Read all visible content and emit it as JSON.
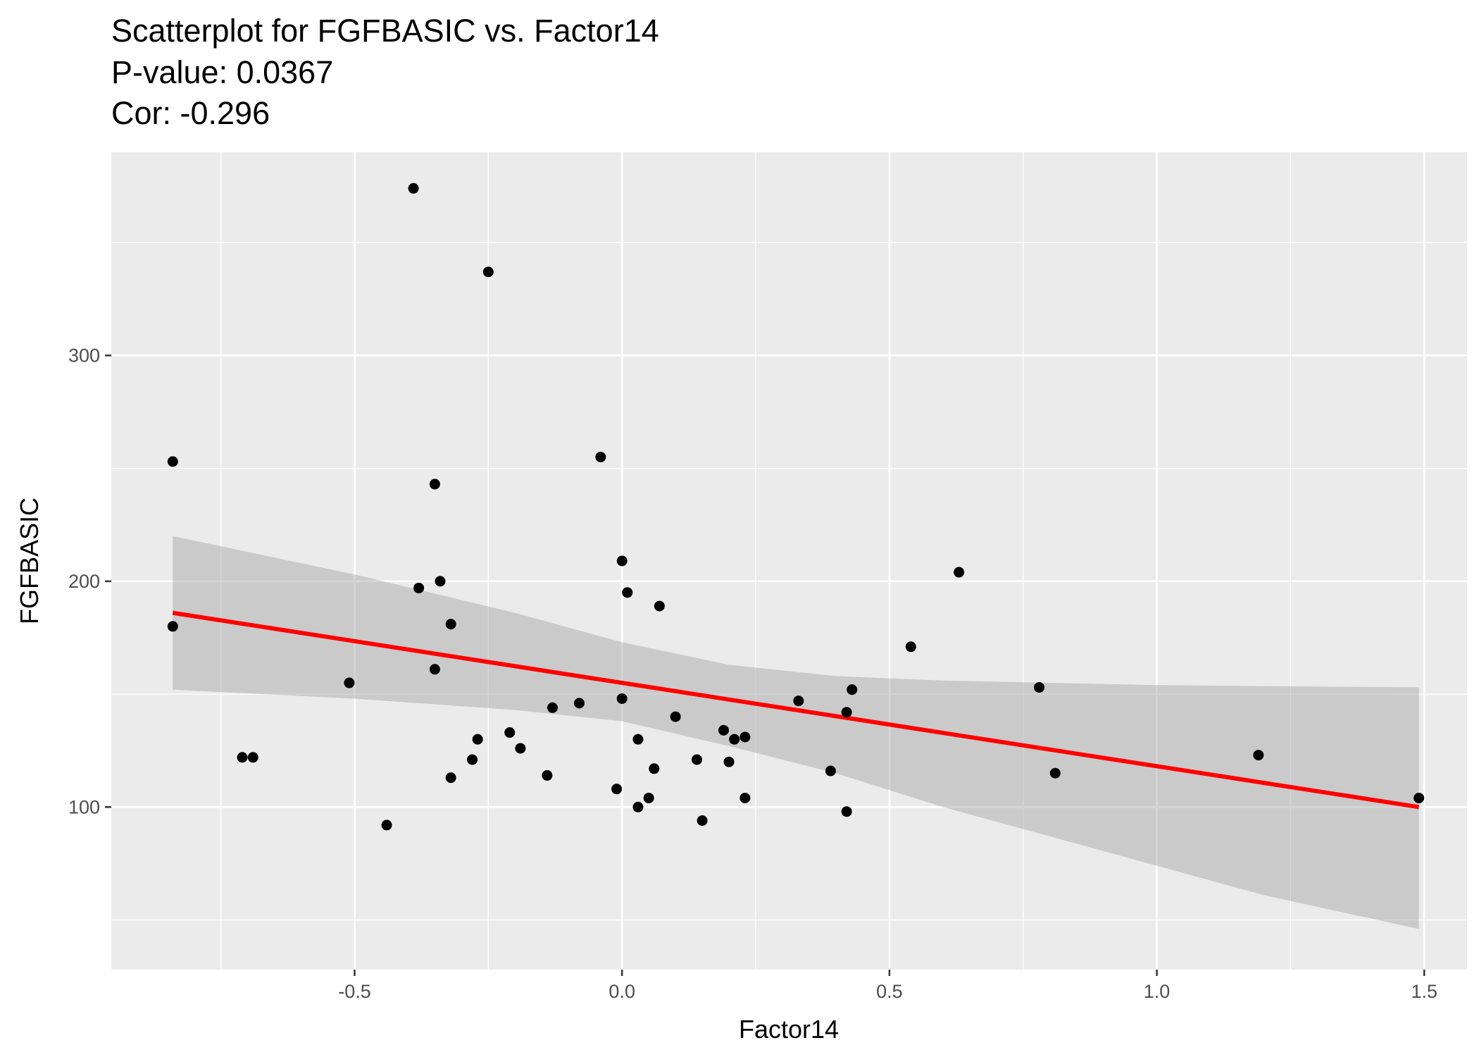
{
  "chart_data": {
    "type": "scatter",
    "title_lines": [
      "Scatterplot for FGFBASIC vs. Factor14",
      "P-value: 0.0367",
      "Cor: -0.296"
    ],
    "xlabel": "Factor14",
    "ylabel": "FGFBASIC",
    "xlim": [
      -0.955,
      1.58
    ],
    "ylim": [
      28,
      390
    ],
    "x_major_ticks": [
      -0.5,
      0.0,
      0.5,
      1.0,
      1.5
    ],
    "x_tick_labels": [
      "-0.5",
      "0.0",
      "0.5",
      "1.0",
      "1.5"
    ],
    "x_minor_ticks": [
      -0.75,
      -0.25,
      0.25,
      0.75,
      1.25
    ],
    "y_major_ticks": [
      100,
      200,
      300
    ],
    "y_tick_labels": [
      "100",
      "200",
      "300"
    ],
    "y_minor_ticks": [
      50,
      150,
      250,
      350
    ],
    "grid": true,
    "colors": {
      "panel_background": "#ebebeb",
      "grid": "#ffffff",
      "points": "#000000",
      "regression_line": "#ff0000",
      "confidence_band": "#999999"
    },
    "series": [
      {
        "name": "observations",
        "points": [
          {
            "x": -0.39,
            "y": 374
          },
          {
            "x": -0.25,
            "y": 337
          },
          {
            "x": -0.84,
            "y": 253
          },
          {
            "x": -0.04,
            "y": 255
          },
          {
            "x": -0.35,
            "y": 243
          },
          {
            "x": 0.0,
            "y": 209
          },
          {
            "x": 0.63,
            "y": 204
          },
          {
            "x": -0.34,
            "y": 200
          },
          {
            "x": -0.38,
            "y": 197
          },
          {
            "x": 0.01,
            "y": 195
          },
          {
            "x": 0.07,
            "y": 189
          },
          {
            "x": -0.84,
            "y": 180
          },
          {
            "x": -0.32,
            "y": 181
          },
          {
            "x": 0.54,
            "y": 171
          },
          {
            "x": -0.35,
            "y": 161
          },
          {
            "x": -0.51,
            "y": 155
          },
          {
            "x": 0.43,
            "y": 152
          },
          {
            "x": 0.78,
            "y": 153
          },
          {
            "x": 0.0,
            "y": 148
          },
          {
            "x": -0.08,
            "y": 146
          },
          {
            "x": 0.33,
            "y": 147
          },
          {
            "x": -0.13,
            "y": 144
          },
          {
            "x": 0.42,
            "y": 142
          },
          {
            "x": 0.1,
            "y": 140
          },
          {
            "x": 0.19,
            "y": 134
          },
          {
            "x": -0.21,
            "y": 133
          },
          {
            "x": 0.21,
            "y": 130
          },
          {
            "x": 0.23,
            "y": 131
          },
          {
            "x": -0.27,
            "y": 130
          },
          {
            "x": 0.03,
            "y": 130
          },
          {
            "x": -0.19,
            "y": 126
          },
          {
            "x": 1.19,
            "y": 123
          },
          {
            "x": -0.71,
            "y": 122
          },
          {
            "x": -0.69,
            "y": 122
          },
          {
            "x": -0.28,
            "y": 121
          },
          {
            "x": 0.14,
            "y": 121
          },
          {
            "x": 0.2,
            "y": 120
          },
          {
            "x": 0.06,
            "y": 117
          },
          {
            "x": 0.39,
            "y": 116
          },
          {
            "x": 0.81,
            "y": 115
          },
          {
            "x": -0.14,
            "y": 114
          },
          {
            "x": -0.32,
            "y": 113
          },
          {
            "x": -0.01,
            "y": 108
          },
          {
            "x": 0.05,
            "y": 104
          },
          {
            "x": 0.23,
            "y": 104
          },
          {
            "x": 1.49,
            "y": 104
          },
          {
            "x": 0.03,
            "y": 100
          },
          {
            "x": 0.42,
            "y": 98
          },
          {
            "x": 0.15,
            "y": 94
          },
          {
            "x": -0.44,
            "y": 92
          }
        ]
      }
    ],
    "regression_line": {
      "x": [
        -0.84,
        1.49
      ],
      "y": [
        186,
        100
      ]
    },
    "confidence_band": {
      "x": [
        -0.84,
        -0.5,
        -0.2,
        0.0,
        0.2,
        0.4,
        0.6,
        0.8,
        1.0,
        1.2,
        1.49
      ],
      "upper": [
        220,
        203,
        186,
        173,
        163,
        158,
        156,
        155,
        154,
        153.5,
        153
      ],
      "lower": [
        152,
        148,
        143,
        138,
        127,
        115,
        100,
        87,
        74,
        61,
        46
      ]
    }
  }
}
